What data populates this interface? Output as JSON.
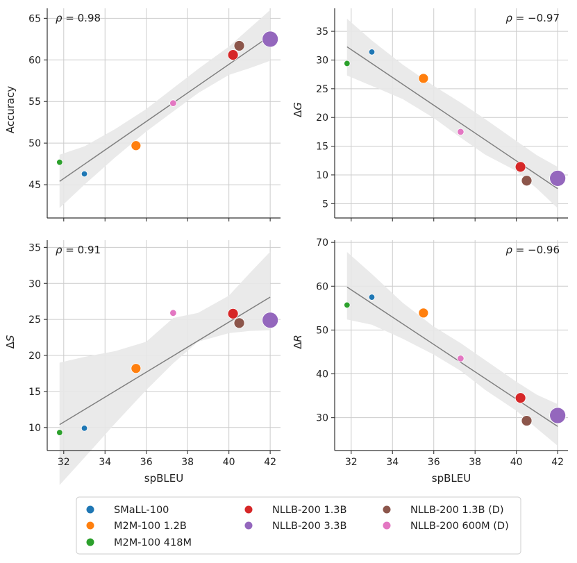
{
  "colors": {
    "grid": "#cccccc",
    "axis": "#333333",
    "fit_line": "#808080",
    "band": "#e8e8e8"
  },
  "models": [
    {
      "name": "SMaLL-100",
      "color": "#1f77b4"
    },
    {
      "name": "M2M-100 1.2B",
      "color": "#ff7f0e"
    },
    {
      "name": "M2M-100 418M",
      "color": "#2ca02c"
    },
    {
      "name": "NLLB-200 1.3B",
      "color": "#d62728"
    },
    {
      "name": "NLLB-200 3.3B",
      "color": "#9467bd"
    },
    {
      "name": "NLLB-200 1.3B (D)",
      "color": "#8c564b"
    },
    {
      "name": "NLLB-200 600M (D)",
      "color": "#e377c2"
    }
  ],
  "chart_data": [
    {
      "type": "scatter",
      "panel": "top-left",
      "xlabel": "",
      "ylabel": "Accuracy",
      "ylabel_style": "plain",
      "xlim": [
        31.2,
        42.5
      ],
      "ylim": [
        41.0,
        66.2
      ],
      "xticks": [
        32,
        34,
        36,
        38,
        40,
        42
      ],
      "yticks": [
        45,
        50,
        55,
        60,
        65
      ],
      "show_xtick_labels": false,
      "annotation": "ρ = 0.98",
      "annotation_position": "top-left",
      "points": [
        {
          "model": "SMaLL-100",
          "x": 33.0,
          "y": 46.3
        },
        {
          "model": "M2M-100 1.2B",
          "x": 35.5,
          "y": 49.7
        },
        {
          "model": "M2M-100 418M",
          "x": 31.8,
          "y": 47.7
        },
        {
          "model": "NLLB-200 1.3B",
          "x": 40.2,
          "y": 60.6
        },
        {
          "model": "NLLB-200 3.3B",
          "x": 42.0,
          "y": 62.5
        },
        {
          "model": "NLLB-200 1.3B (D)",
          "x": 40.5,
          "y": 61.7
        },
        {
          "model": "NLLB-200 600M (D)",
          "x": 37.3,
          "y": 54.8
        }
      ],
      "fit": {
        "x": [
          31.8,
          42.0
        ],
        "y": [
          45.4,
          62.9
        ]
      },
      "band": {
        "x": [
          31.8,
          33.0,
          34.5,
          36.0,
          37.3,
          38.5,
          40.0,
          41.0,
          42.0
        ],
        "lower": [
          42.2,
          45.0,
          48.3,
          51.4,
          53.8,
          56.0,
          58.2,
          59.0,
          59.9
        ],
        "upper": [
          48.6,
          49.6,
          51.7,
          54.1,
          56.6,
          58.9,
          61.6,
          63.8,
          66.0
        ]
      }
    },
    {
      "type": "scatter",
      "panel": "top-right",
      "xlabel": "",
      "ylabel": "ΔG",
      "ylabel_style": "delta",
      "xlim": [
        31.2,
        42.5
      ],
      "ylim": [
        2.5,
        39.0
      ],
      "xticks": [
        32,
        34,
        36,
        38,
        40,
        42
      ],
      "yticks": [
        5,
        10,
        15,
        20,
        25,
        30,
        35
      ],
      "show_xtick_labels": false,
      "annotation": "ρ = −0.97",
      "annotation_position": "top-right",
      "points": [
        {
          "model": "SMaLL-100",
          "x": 33.0,
          "y": 31.4
        },
        {
          "model": "M2M-100 1.2B",
          "x": 35.5,
          "y": 26.8
        },
        {
          "model": "M2M-100 418M",
          "x": 31.8,
          "y": 29.4
        },
        {
          "model": "NLLB-200 1.3B",
          "x": 40.2,
          "y": 11.4
        },
        {
          "model": "NLLB-200 3.3B",
          "x": 42.0,
          "y": 9.4
        },
        {
          "model": "NLLB-200 1.3B (D)",
          "x": 40.5,
          "y": 9.0
        },
        {
          "model": "NLLB-200 600M (D)",
          "x": 37.3,
          "y": 17.5
        }
      ],
      "fit": {
        "x": [
          31.8,
          42.0
        ],
        "y": [
          32.3,
          7.6
        ]
      },
      "band": {
        "x": [
          31.8,
          33.0,
          34.5,
          36.0,
          37.3,
          38.5,
          40.0,
          41.0,
          42.0
        ],
        "lower": [
          27.3,
          25.5,
          23.2,
          19.9,
          16.5,
          13.5,
          10.7,
          7.6,
          4.2
        ],
        "upper": [
          37.2,
          33.4,
          29.2,
          25.5,
          22.6,
          19.7,
          15.9,
          13.4,
          11.4
        ]
      }
    },
    {
      "type": "scatter",
      "panel": "bottom-left",
      "xlabel": "spBLEU",
      "ylabel": "ΔS",
      "ylabel_style": "delta",
      "xlim": [
        31.2,
        42.5
      ],
      "ylim": [
        6.8,
        36.0
      ],
      "xticks": [
        32,
        34,
        36,
        38,
        40,
        42
      ],
      "yticks": [
        10,
        15,
        20,
        25,
        30,
        35
      ],
      "show_xtick_labels": true,
      "annotation": "ρ = 0.91",
      "annotation_position": "top-left",
      "points": [
        {
          "model": "SMaLL-100",
          "x": 33.0,
          "y": 9.9
        },
        {
          "model": "M2M-100 1.2B",
          "x": 35.5,
          "y": 18.2
        },
        {
          "model": "M2M-100 418M",
          "x": 31.8,
          "y": 9.3
        },
        {
          "model": "NLLB-200 1.3B",
          "x": 40.2,
          "y": 25.8
        },
        {
          "model": "NLLB-200 3.3B",
          "x": 42.0,
          "y": 24.9
        },
        {
          "model": "NLLB-200 1.3B (D)",
          "x": 40.5,
          "y": 24.5
        },
        {
          "model": "NLLB-200 600M (D)",
          "x": 37.3,
          "y": 25.9
        }
      ],
      "fit": {
        "x": [
          31.8,
          42.0
        ],
        "y": [
          10.4,
          28.1
        ]
      },
      "band": {
        "x": [
          31.8,
          33.0,
          34.5,
          36.0,
          37.3,
          38.5,
          40.0,
          41.0,
          42.0
        ],
        "lower": [
          2.0,
          5.8,
          10.6,
          15.2,
          18.9,
          21.9,
          23.1,
          23.4,
          23.5
        ],
        "upper": [
          19.0,
          19.8,
          20.6,
          21.9,
          25.2,
          25.9,
          28.3,
          31.4,
          34.4
        ]
      }
    },
    {
      "type": "scatter",
      "panel": "bottom-right",
      "xlabel": "spBLEU",
      "ylabel": "ΔR",
      "ylabel_style": "delta",
      "xlim": [
        31.2,
        42.5
      ],
      "ylim": [
        22.5,
        70.5
      ],
      "xticks": [
        32,
        34,
        36,
        38,
        40,
        42
      ],
      "yticks": [
        30,
        40,
        50,
        60,
        70
      ],
      "show_xtick_labels": true,
      "annotation": "ρ = −0.96",
      "annotation_position": "top-right",
      "points": [
        {
          "model": "SMaLL-100",
          "x": 33.0,
          "y": 57.5
        },
        {
          "model": "M2M-100 1.2B",
          "x": 35.5,
          "y": 53.9
        },
        {
          "model": "M2M-100 418M",
          "x": 31.8,
          "y": 55.7
        },
        {
          "model": "NLLB-200 1.3B",
          "x": 40.2,
          "y": 34.5
        },
        {
          "model": "NLLB-200 3.3B",
          "x": 42.0,
          "y": 30.5
        },
        {
          "model": "NLLB-200 1.3B (D)",
          "x": 40.5,
          "y": 29.3
        },
        {
          "model": "NLLB-200 600M (D)",
          "x": 37.3,
          "y": 43.5
        }
      ],
      "fit": {
        "x": [
          31.8,
          42.0
        ],
        "y": [
          59.8,
          28.0
        ]
      },
      "band": {
        "x": [
          31.8,
          33.0,
          34.5,
          36.0,
          37.3,
          38.5,
          40.0,
          41.0,
          42.0
        ],
        "lower": [
          52.4,
          51.2,
          48.0,
          44.4,
          40.7,
          36.3,
          31.6,
          27.5,
          23.6
        ],
        "upper": [
          67.8,
          62.8,
          56.2,
          50.8,
          47.0,
          43.1,
          38.2,
          35.2,
          33.1
        ]
      }
    }
  ]
}
